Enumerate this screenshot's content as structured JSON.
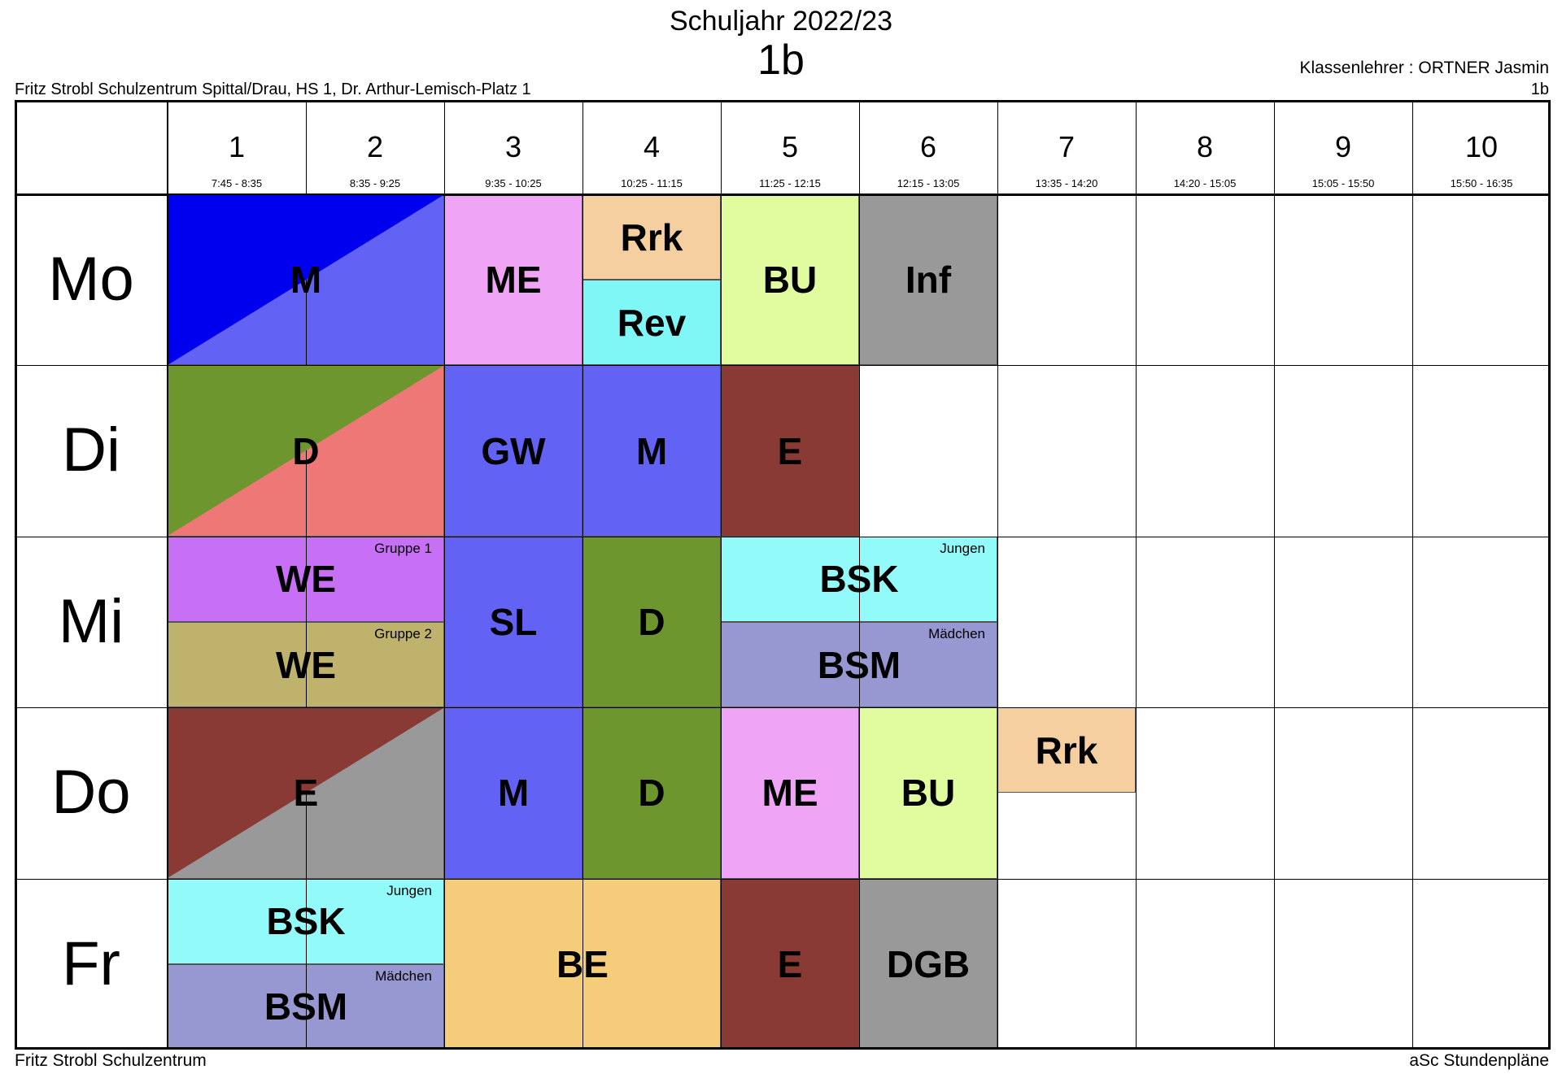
{
  "header": {
    "year": "Schuljahr 2022/23",
    "class_name": "1b",
    "school": "Fritz Strobl Schulzentrum Spittal/Drau, HS 1, Dr. Arthur-Lemisch-Platz 1",
    "teacher": "Klassenlehrer : ORTNER Jasmin",
    "class_right": "1b"
  },
  "footer": {
    "left": "Fritz Strobl Schulzentrum",
    "right": "aSc Stundenpläne"
  },
  "periods": [
    {
      "num": "1",
      "time": "7:45 - 8:35"
    },
    {
      "num": "2",
      "time": "8:35 - 9:25"
    },
    {
      "num": "3",
      "time": "9:35 - 10:25"
    },
    {
      "num": "4",
      "time": "10:25 - 11:15"
    },
    {
      "num": "5",
      "time": "11:25 - 12:15"
    },
    {
      "num": "6",
      "time": "12:15 - 13:05"
    },
    {
      "num": "7",
      "time": "13:35 - 14:20"
    },
    {
      "num": "8",
      "time": "14:20 - 15:05"
    },
    {
      "num": "9",
      "time": "15:05 - 15:50"
    },
    {
      "num": "10",
      "time": "15:50 - 16:35"
    }
  ],
  "days": [
    "Mo",
    "Di",
    "Mi",
    "Do",
    "Fr"
  ],
  "lessons": [
    {
      "day": 0,
      "period": 1,
      "span": 2,
      "part": "full",
      "subject": "M",
      "colors": [
        "#0000ee",
        "#6262f5"
      ]
    },
    {
      "day": 0,
      "period": 3,
      "span": 1,
      "part": "full",
      "subject": "ME",
      "colors": [
        "#f0a4f5"
      ]
    },
    {
      "day": 0,
      "period": 4,
      "span": 1,
      "part": "top",
      "subject": "Rrk",
      "colors": [
        "#f5cfa0"
      ]
    },
    {
      "day": 0,
      "period": 4,
      "span": 1,
      "part": "bottom",
      "subject": "Rev",
      "colors": [
        "#7ff7f7"
      ]
    },
    {
      "day": 0,
      "period": 5,
      "span": 1,
      "part": "full",
      "subject": "BU",
      "colors": [
        "#e1fc9f"
      ]
    },
    {
      "day": 0,
      "period": 6,
      "span": 1,
      "part": "full",
      "subject": "Inf",
      "colors": [
        "#999999"
      ]
    },
    {
      "day": 1,
      "period": 1,
      "span": 2,
      "part": "full",
      "subject": "D",
      "colors": [
        "#6e962e",
        "#ee7876"
      ]
    },
    {
      "day": 1,
      "period": 3,
      "span": 1,
      "part": "full",
      "subject": "GW",
      "colors": [
        "#6262f5"
      ]
    },
    {
      "day": 1,
      "period": 4,
      "span": 1,
      "part": "full",
      "subject": "M",
      "colors": [
        "#6262f5"
      ]
    },
    {
      "day": 1,
      "period": 5,
      "span": 1,
      "part": "full",
      "subject": "E",
      "colors": [
        "#8a3a35"
      ]
    },
    {
      "day": 2,
      "period": 1,
      "span": 2,
      "part": "top",
      "subject": "WE",
      "group": "Gruppe 1",
      "colors": [
        "#c76ff5"
      ]
    },
    {
      "day": 2,
      "period": 1,
      "span": 2,
      "part": "bottom",
      "subject": "WE",
      "group": "Gruppe 2",
      "colors": [
        "#beb26d"
      ]
    },
    {
      "day": 2,
      "period": 3,
      "span": 1,
      "part": "full",
      "subject": "SL",
      "colors": [
        "#6262f5"
      ]
    },
    {
      "day": 2,
      "period": 4,
      "span": 1,
      "part": "full",
      "subject": "D",
      "colors": [
        "#6e962e"
      ]
    },
    {
      "day": 2,
      "period": 5,
      "span": 2,
      "part": "top",
      "subject": "BSK",
      "group": "Jungen",
      "colors": [
        "#93fafa"
      ]
    },
    {
      "day": 2,
      "period": 5,
      "span": 2,
      "part": "bottom",
      "subject": "BSM",
      "group": "Mädchen",
      "colors": [
        "#9797d2"
      ]
    },
    {
      "day": 3,
      "period": 1,
      "span": 2,
      "part": "full",
      "subject": "E",
      "colors": [
        "#8a3a35",
        "#999999"
      ]
    },
    {
      "day": 3,
      "period": 3,
      "span": 1,
      "part": "full",
      "subject": "M",
      "colors": [
        "#6262f5"
      ]
    },
    {
      "day": 3,
      "period": 4,
      "span": 1,
      "part": "full",
      "subject": "D",
      "colors": [
        "#6e962e"
      ]
    },
    {
      "day": 3,
      "period": 5,
      "span": 1,
      "part": "full",
      "subject": "ME",
      "colors": [
        "#f0a4f5"
      ]
    },
    {
      "day": 3,
      "period": 6,
      "span": 1,
      "part": "full",
      "subject": "BU",
      "colors": [
        "#e1fc9f"
      ]
    },
    {
      "day": 3,
      "period": 7,
      "span": 1,
      "part": "top",
      "subject": "Rrk",
      "colors": [
        "#f5cfa0"
      ]
    },
    {
      "day": 4,
      "period": 1,
      "span": 2,
      "part": "top",
      "subject": "BSK",
      "group": "Jungen",
      "colors": [
        "#93fafa"
      ]
    },
    {
      "day": 4,
      "period": 1,
      "span": 2,
      "part": "bottom",
      "subject": "BSM",
      "group": "Mädchen",
      "colors": [
        "#9797d2"
      ]
    },
    {
      "day": 4,
      "period": 3,
      "span": 2,
      "part": "full",
      "subject": "BE",
      "colors": [
        "#f5cd7a"
      ]
    },
    {
      "day": 4,
      "period": 5,
      "span": 1,
      "part": "full",
      "subject": "E",
      "colors": [
        "#8a3a35"
      ]
    },
    {
      "day": 4,
      "period": 6,
      "span": 1,
      "part": "full",
      "subject": "DGB",
      "colors": [
        "#999999"
      ]
    }
  ]
}
